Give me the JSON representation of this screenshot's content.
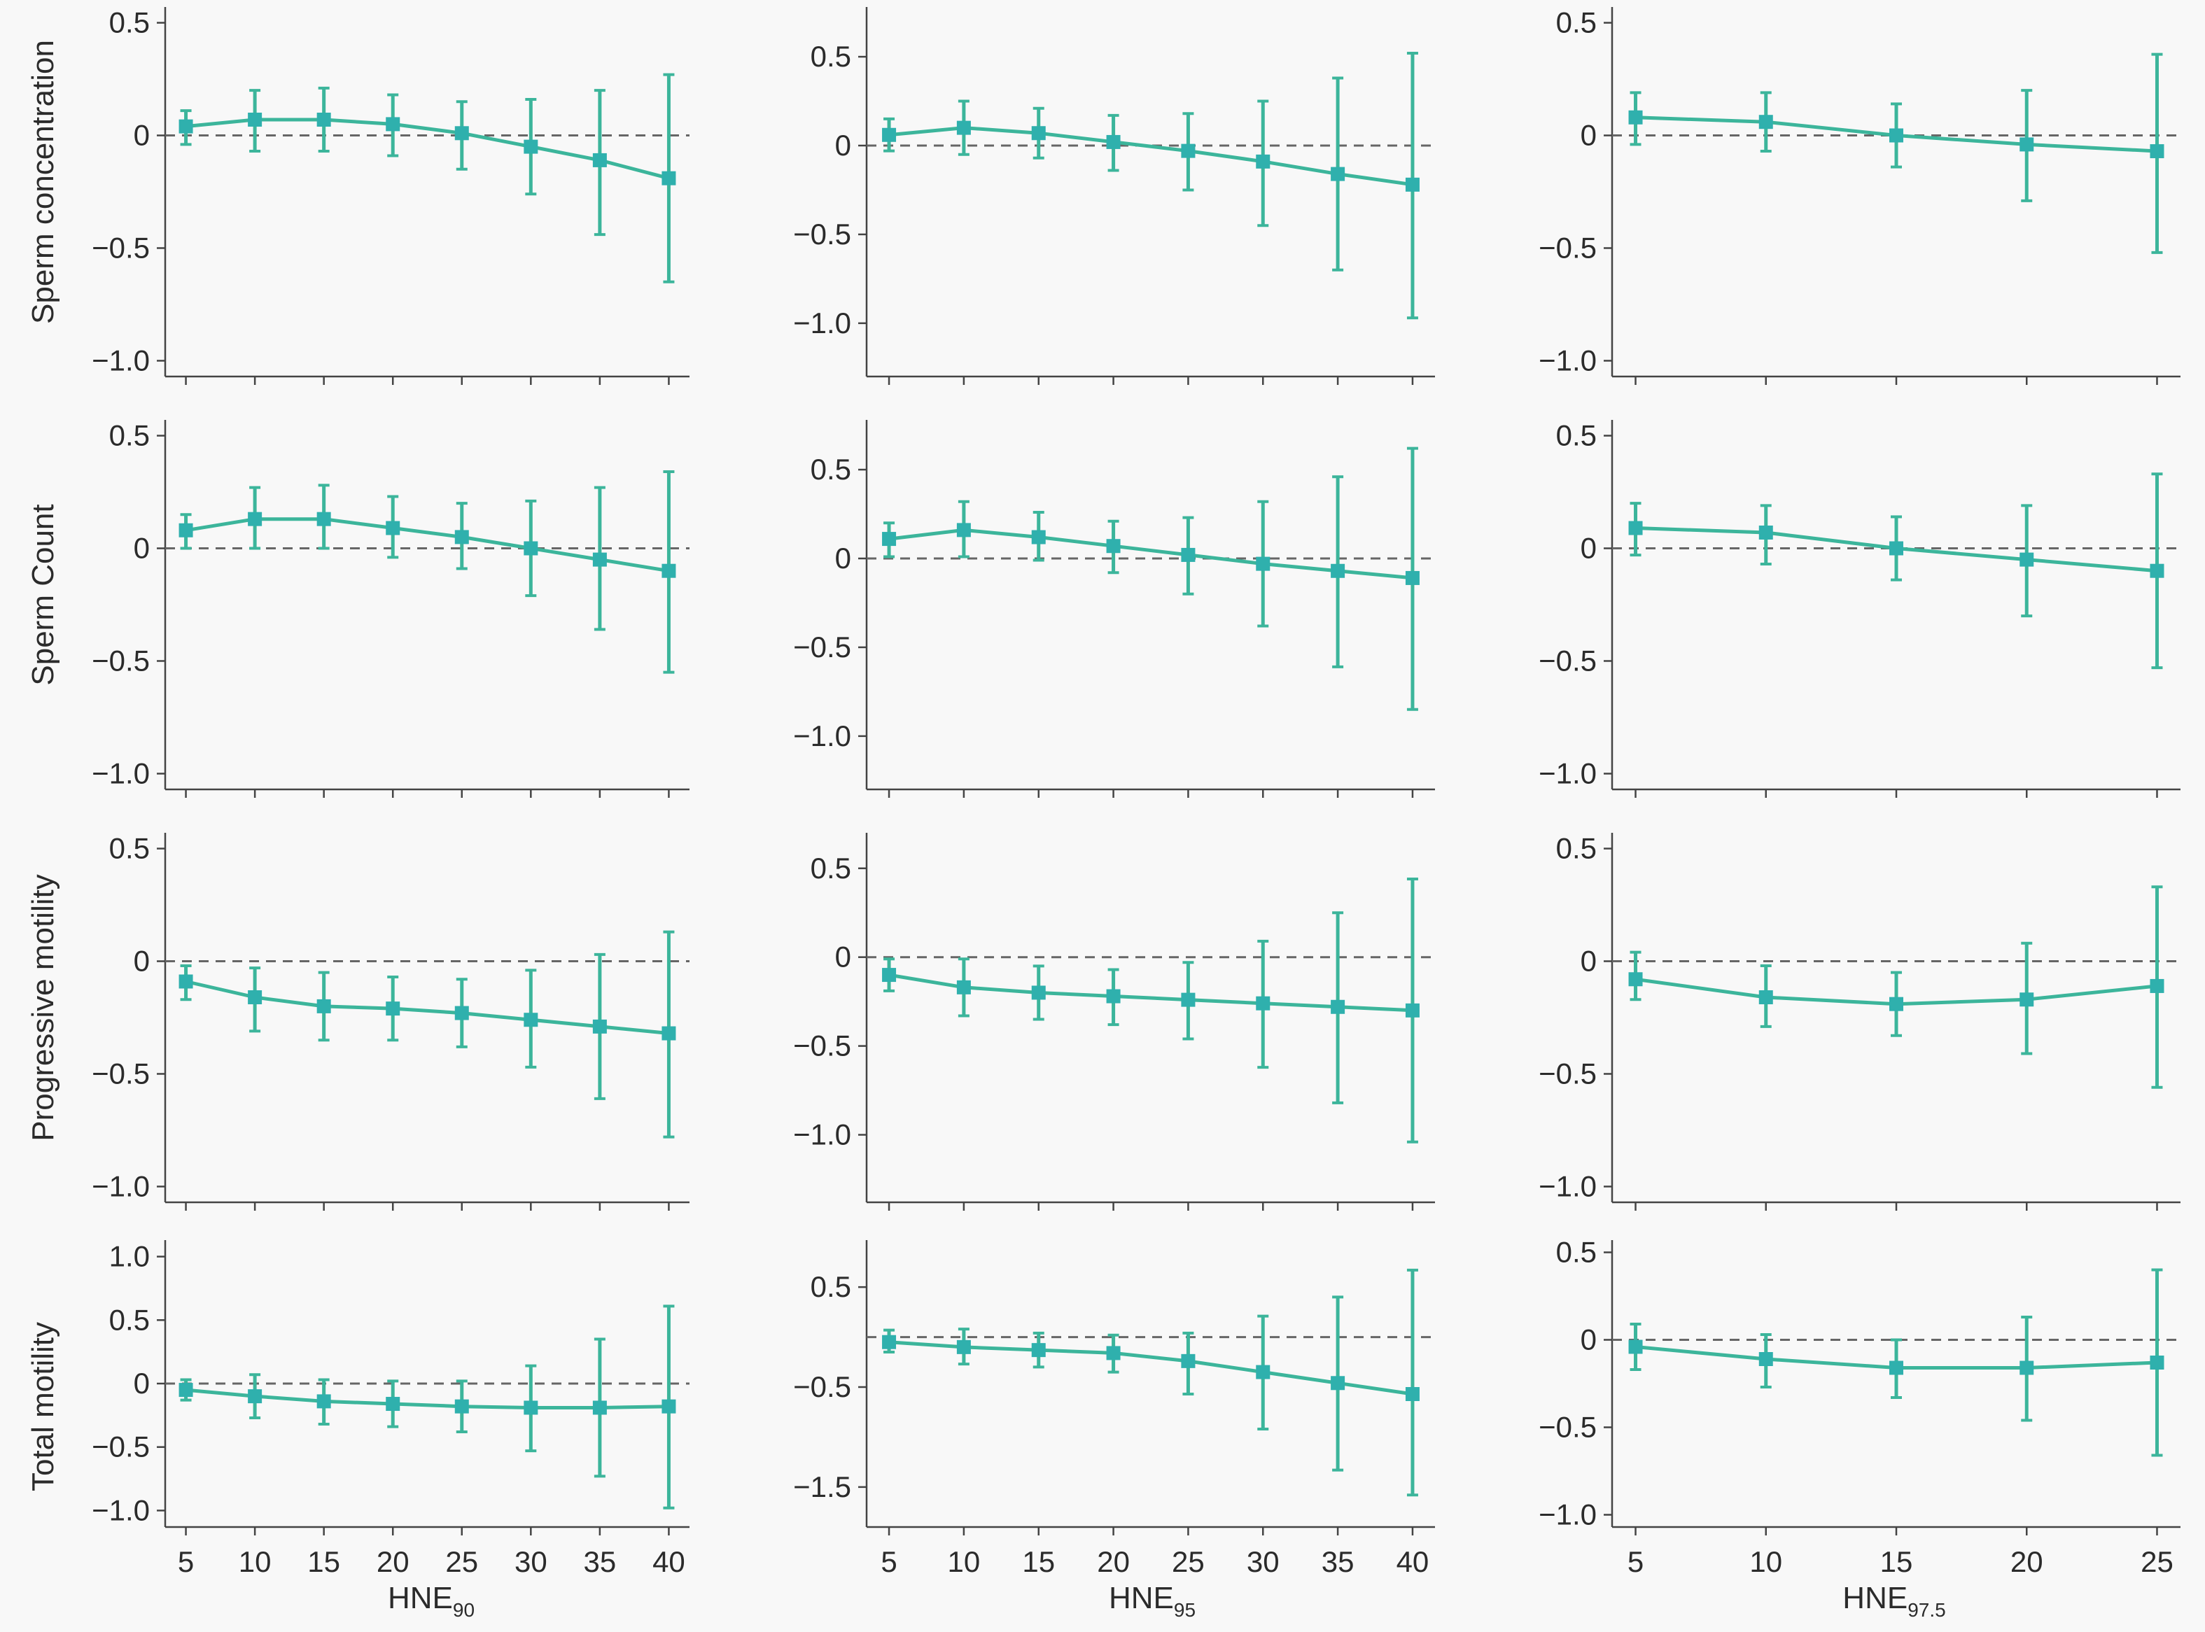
{
  "colors": {
    "line": "#3cb59b",
    "marker": "#2fb0ad",
    "reference_line": "#666666",
    "axis": "#444444",
    "background": "#f8f8f8"
  },
  "row_labels": [
    "Sperm concentration",
    "Sperm Count",
    "Progressive motility",
    "Total motility"
  ],
  "x_axis_titles": [
    {
      "main": "HNE",
      "sub": "90"
    },
    {
      "main": "HNE",
      "sub": "95"
    },
    {
      "main": "HNE",
      "sub": "97.5"
    }
  ],
  "chart_data": [
    {
      "type": "line",
      "row": 0,
      "col": 0,
      "ylabel": "Sperm concentration",
      "xlabel": "",
      "x": [
        5,
        10,
        15,
        20,
        25,
        30,
        35,
        40
      ],
      "y": [
        0.04,
        0.07,
        0.07,
        0.05,
        0.01,
        -0.05,
        -0.11,
        -0.19
      ],
      "ci_low": [
        -0.04,
        -0.07,
        -0.07,
        -0.09,
        -0.15,
        -0.26,
        -0.44,
        -0.65
      ],
      "ci_high": [
        0.11,
        0.2,
        0.21,
        0.18,
        0.15,
        0.16,
        0.2,
        0.27
      ],
      "xlim": [
        3.5,
        41.5
      ],
      "ylim": [
        -1.07,
        0.57
      ],
      "yticks": [
        0.5,
        0,
        -0.5,
        -1.0
      ],
      "yticklabels": [
        "0.5",
        "0",
        "−0.5",
        "−1.0"
      ],
      "xticks": [
        5,
        10,
        15,
        20,
        25,
        30,
        35,
        40
      ],
      "xticklabels": [],
      "reference_y": 0
    },
    {
      "type": "line",
      "row": 0,
      "col": 1,
      "ylabel": "",
      "xlabel": "",
      "x": [
        5,
        10,
        15,
        20,
        25,
        30,
        35,
        40
      ],
      "y": [
        0.06,
        0.1,
        0.07,
        0.02,
        -0.03,
        -0.09,
        -0.16,
        -0.22
      ],
      "ci_low": [
        -0.03,
        -0.05,
        -0.07,
        -0.14,
        -0.25,
        -0.45,
        -0.7,
        -0.97
      ],
      "ci_high": [
        0.15,
        0.25,
        0.21,
        0.17,
        0.18,
        0.25,
        0.38,
        0.52
      ],
      "xlim": [
        3.5,
        41.5
      ],
      "ylim": [
        -1.3,
        0.78
      ],
      "yticks": [
        0.5,
        0,
        -0.5,
        -1.0
      ],
      "yticklabels": [
        "0.5",
        "0",
        "−0.5",
        "−1.0"
      ],
      "xticks": [
        5,
        10,
        15,
        20,
        25,
        30,
        35,
        40
      ],
      "xticklabels": [],
      "reference_y": 0
    },
    {
      "type": "line",
      "row": 0,
      "col": 2,
      "ylabel": "",
      "xlabel": "",
      "x": [
        5,
        10,
        15,
        20,
        25
      ],
      "y": [
        0.08,
        0.06,
        0.0,
        -0.04,
        -0.07
      ],
      "ci_low": [
        -0.04,
        -0.07,
        -0.14,
        -0.29,
        -0.52
      ],
      "ci_high": [
        0.19,
        0.19,
        0.14,
        0.2,
        0.36
      ],
      "xlim": [
        4.1,
        25.9
      ],
      "ylim": [
        -1.07,
        0.57
      ],
      "yticks": [
        0.5,
        0,
        -0.5,
        -1.0
      ],
      "yticklabels": [
        "0.5",
        "0",
        "−0.5",
        "−1.0"
      ],
      "xticks": [
        5,
        10,
        15,
        20,
        25
      ],
      "xticklabels": [],
      "reference_y": 0
    },
    {
      "type": "line",
      "row": 1,
      "col": 0,
      "ylabel": "Sperm Count",
      "xlabel": "",
      "x": [
        5,
        10,
        15,
        20,
        25,
        30,
        35,
        40
      ],
      "y": [
        0.08,
        0.13,
        0.13,
        0.09,
        0.05,
        0.0,
        -0.05,
        -0.1
      ],
      "ci_low": [
        0.0,
        0.0,
        0.0,
        -0.04,
        -0.09,
        -0.21,
        -0.36,
        -0.55
      ],
      "ci_high": [
        0.15,
        0.27,
        0.28,
        0.23,
        0.2,
        0.21,
        0.27,
        0.34
      ],
      "xlim": [
        3.5,
        41.5
      ],
      "ylim": [
        -1.07,
        0.57
      ],
      "yticks": [
        0.5,
        0,
        -0.5,
        -1.0
      ],
      "yticklabels": [
        "0.5",
        "0",
        "−0.5",
        "−1.0"
      ],
      "xticks": [
        5,
        10,
        15,
        20,
        25,
        30,
        35,
        40
      ],
      "xticklabels": [],
      "reference_y": 0
    },
    {
      "type": "line",
      "row": 1,
      "col": 1,
      "ylabel": "",
      "xlabel": "",
      "x": [
        5,
        10,
        15,
        20,
        25,
        30,
        35,
        40
      ],
      "y": [
        0.11,
        0.16,
        0.12,
        0.07,
        0.02,
        -0.03,
        -0.07,
        -0.11
      ],
      "ci_low": [
        0.01,
        0.01,
        -0.01,
        -0.08,
        -0.2,
        -0.38,
        -0.61,
        -0.85
      ],
      "ci_high": [
        0.2,
        0.32,
        0.26,
        0.21,
        0.23,
        0.32,
        0.46,
        0.62
      ],
      "xlim": [
        3.5,
        41.5
      ],
      "ylim": [
        -1.3,
        0.78
      ],
      "yticks": [
        0.5,
        0,
        -0.5,
        -1.0
      ],
      "yticklabels": [
        "0.5",
        "0",
        "−0.5",
        "−1.0"
      ],
      "xticks": [
        5,
        10,
        15,
        20,
        25,
        30,
        35,
        40
      ],
      "xticklabels": [],
      "reference_y": 0
    },
    {
      "type": "line",
      "row": 1,
      "col": 2,
      "ylabel": "",
      "xlabel": "",
      "x": [
        5,
        10,
        15,
        20,
        25
      ],
      "y": [
        0.09,
        0.07,
        0.0,
        -0.05,
        -0.1
      ],
      "ci_low": [
        -0.03,
        -0.07,
        -0.14,
        -0.3,
        -0.53
      ],
      "ci_high": [
        0.2,
        0.19,
        0.14,
        0.19,
        0.33
      ],
      "xlim": [
        4.1,
        25.9
      ],
      "ylim": [
        -1.07,
        0.57
      ],
      "yticks": [
        0.5,
        0,
        -0.5,
        -1.0
      ],
      "yticklabels": [
        "0.5",
        "0",
        "−0.5",
        "−1.0"
      ],
      "xticks": [
        5,
        10,
        15,
        20,
        25
      ],
      "xticklabels": [],
      "reference_y": 0
    },
    {
      "type": "line",
      "row": 2,
      "col": 0,
      "ylabel": "Progressive motility",
      "xlabel": "",
      "x": [
        5,
        10,
        15,
        20,
        25,
        30,
        35,
        40
      ],
      "y": [
        -0.09,
        -0.16,
        -0.2,
        -0.21,
        -0.23,
        -0.26,
        -0.29,
        -0.32
      ],
      "ci_low": [
        -0.17,
        -0.31,
        -0.35,
        -0.35,
        -0.38,
        -0.47,
        -0.61,
        -0.78
      ],
      "ci_high": [
        -0.02,
        -0.03,
        -0.05,
        -0.07,
        -0.08,
        -0.04,
        0.03,
        0.13
      ],
      "xlim": [
        3.5,
        41.5
      ],
      "ylim": [
        -1.07,
        0.57
      ],
      "yticks": [
        0.5,
        0,
        -0.5,
        -1.0
      ],
      "yticklabels": [
        "0.5",
        "0",
        "−0.5",
        "−1.0"
      ],
      "xticks": [
        5,
        10,
        15,
        20,
        25,
        30,
        35,
        40
      ],
      "xticklabels": [],
      "reference_y": 0
    },
    {
      "type": "line",
      "row": 2,
      "col": 1,
      "ylabel": "",
      "xlabel": "",
      "x": [
        5,
        10,
        15,
        20,
        25,
        30,
        35,
        40
      ],
      "y": [
        -0.1,
        -0.17,
        -0.2,
        -0.22,
        -0.24,
        -0.26,
        -0.28,
        -0.3
      ],
      "ci_low": [
        -0.19,
        -0.33,
        -0.35,
        -0.38,
        -0.46,
        -0.62,
        -0.82,
        -1.04
      ],
      "ci_high": [
        -0.01,
        -0.01,
        -0.05,
        -0.07,
        -0.03,
        0.09,
        0.25,
        0.44
      ],
      "xlim": [
        3.5,
        41.5
      ],
      "ylim": [
        -1.38,
        0.7
      ],
      "yticks": [
        0.5,
        0,
        -0.5,
        -1.0
      ],
      "yticklabels": [
        "0.5",
        "0",
        "−0.5",
        "−1.0"
      ],
      "xticks": [
        5,
        10,
        15,
        20,
        25,
        30,
        35,
        40
      ],
      "xticklabels": [],
      "reference_y": 0
    },
    {
      "type": "line",
      "row": 2,
      "col": 2,
      "ylabel": "",
      "xlabel": "",
      "x": [
        5,
        10,
        15,
        20,
        25
      ],
      "y": [
        -0.08,
        -0.16,
        -0.19,
        -0.17,
        -0.11
      ],
      "ci_low": [
        -0.17,
        -0.29,
        -0.33,
        -0.41,
        -0.56
      ],
      "ci_high": [
        0.04,
        -0.02,
        -0.05,
        0.08,
        0.33
      ],
      "xlim": [
        4.1,
        25.9
      ],
      "ylim": [
        -1.07,
        0.57
      ],
      "yticks": [
        0.5,
        0,
        -0.5,
        -1.0
      ],
      "yticklabels": [
        "0.5",
        "0",
        "−0.5",
        "−1.0"
      ],
      "xticks": [
        5,
        10,
        15,
        20,
        25
      ],
      "xticklabels": [],
      "reference_y": 0
    },
    {
      "type": "line",
      "row": 3,
      "col": 0,
      "ylabel": "Total motility",
      "xlabel": "HNE90",
      "x": [
        5,
        10,
        15,
        20,
        25,
        30,
        35,
        40
      ],
      "y": [
        -0.05,
        -0.1,
        -0.14,
        -0.16,
        -0.18,
        -0.19,
        -0.19,
        -0.18
      ],
      "ci_low": [
        -0.13,
        -0.27,
        -0.32,
        -0.34,
        -0.38,
        -0.53,
        -0.73,
        -0.98
      ],
      "ci_high": [
        0.03,
        0.07,
        0.03,
        0.02,
        0.02,
        0.14,
        0.35,
        0.61
      ],
      "xlim": [
        3.5,
        41.5
      ],
      "ylim": [
        -1.13,
        1.13
      ],
      "yticks": [
        1.0,
        0.5,
        0,
        -0.5,
        -1.0
      ],
      "yticklabels": [
        "1.0",
        "0.5",
        "0",
        "−0.5",
        "−1.0"
      ],
      "xticks": [
        5,
        10,
        15,
        20,
        25,
        30,
        35,
        40
      ],
      "xticklabels": [
        "5",
        "10",
        "15",
        "20",
        "25",
        "30",
        "35",
        "40"
      ],
      "reference_y": 0
    },
    {
      "type": "line",
      "row": 3,
      "col": 1,
      "ylabel": "",
      "xlabel": "HNE95",
      "x": [
        5,
        10,
        15,
        20,
        25,
        30,
        35,
        40
      ],
      "y": [
        -0.05,
        -0.1,
        -0.13,
        -0.16,
        -0.24,
        -0.35,
        -0.46,
        -0.57
      ],
      "ci_low": [
        -0.15,
        -0.27,
        -0.3,
        -0.35,
        -0.57,
        -0.92,
        -1.33,
        -1.58
      ],
      "ci_high": [
        0.07,
        0.08,
        0.04,
        0.02,
        0.04,
        0.21,
        0.4,
        0.67
      ],
      "xlim": [
        3.5,
        41.5
      ],
      "ylim": [
        -1.9,
        0.97
      ],
      "yticks": [
        0.5,
        -0.5,
        -1.5
      ],
      "yticklabels": [
        "0.5",
        "−0.5",
        "−1.5"
      ],
      "xticks": [
        5,
        10,
        15,
        20,
        25,
        30,
        35,
        40
      ],
      "xticklabels": [
        "5",
        "10",
        "15",
        "20",
        "25",
        "30",
        "35",
        "40"
      ],
      "reference_y": 0
    },
    {
      "type": "line",
      "row": 3,
      "col": 2,
      "ylabel": "",
      "xlabel": "HNE97.5",
      "x": [
        5,
        10,
        15,
        20,
        25
      ],
      "y": [
        -0.04,
        -0.11,
        -0.16,
        -0.16,
        -0.13
      ],
      "ci_low": [
        -0.17,
        -0.27,
        -0.33,
        -0.46,
        -0.66
      ],
      "ci_high": [
        0.09,
        0.03,
        0.0,
        0.13,
        0.4
      ],
      "xlim": [
        4.1,
        25.9
      ],
      "ylim": [
        -1.07,
        0.57
      ],
      "yticks": [
        0.5,
        0,
        -0.5,
        -1.0
      ],
      "yticklabels": [
        "0.5",
        "0",
        "−0.5",
        "−1.0"
      ],
      "xticks": [
        5,
        10,
        15,
        20,
        25
      ],
      "xticklabels": [
        "5",
        "10",
        "15",
        "20",
        "25"
      ],
      "reference_y": 0
    }
  ]
}
